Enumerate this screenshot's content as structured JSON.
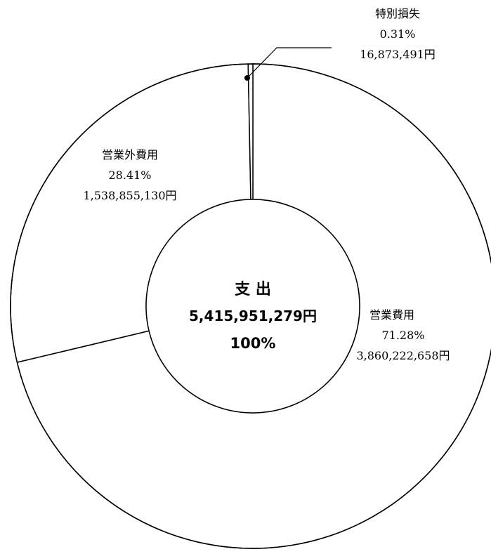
{
  "chart_data": {
    "type": "pie",
    "center": {
      "title": "支 出",
      "total": "5,415,951,279円",
      "percent": "100%"
    },
    "slices": [
      {
        "name": "営業費用",
        "percent_label": "71.28%",
        "amount_label": "3,860,222,658円",
        "value": 3860222658
      },
      {
        "name": "営業外費用",
        "percent_label": "28.41%",
        "amount_label": "1,538,855,130円",
        "value": 1538855130
      },
      {
        "name": "特別損失",
        "percent_label": "0.31%",
        "amount_label": "16,873,491円",
        "value": 16873491
      }
    ]
  }
}
